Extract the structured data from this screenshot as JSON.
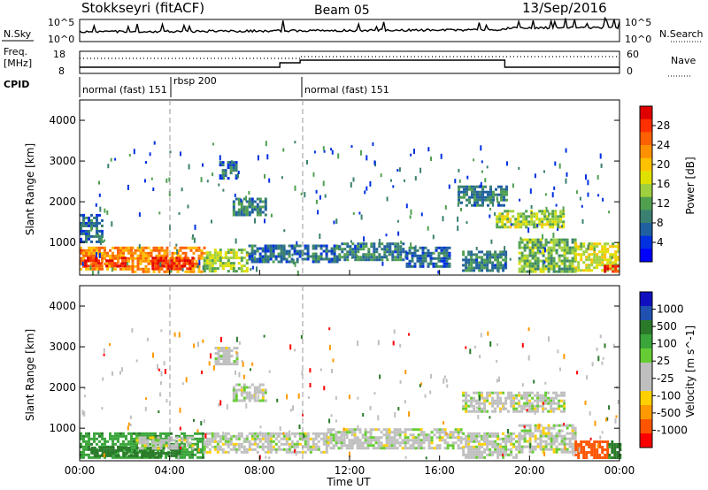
{
  "header": {
    "station": "Stokkseyri (fitACF)",
    "beam": "Beam 05",
    "date": "13/Sep/2016"
  },
  "top_panel": {
    "nsky_label": "N.Sky",
    "nsky_tick_top": "10^5",
    "nsky_tick_bottom": "10^0",
    "nsearch_label": "N.Search",
    "nsearch_tick_top": "10^5",
    "nsearch_tick_bottom": "10^0",
    "freq_label_line1": "Freq.",
    "freq_label_line2": "[MHz]",
    "freq_tick_top": "18",
    "freq_tick_bottom": "8",
    "nave_label": "Nave",
    "nave_tick_top": "60",
    "nave_tick_bottom": "0",
    "cpid_label": "CPID",
    "cpid_segments": [
      {
        "label": "normal (fast) 151",
        "start_h": 0,
        "end_h": 3.4
      },
      {
        "label": "rbsp 200",
        "start_h": 3.4,
        "end_h": 9.9
      },
      {
        "label": "normal (fast) 151",
        "start_h": 9.9,
        "end_h": 24
      }
    ]
  },
  "colorbars": {
    "power": {
      "label": "Power [dB]",
      "ticks": [
        "28",
        "24",
        "20",
        "16",
        "12",
        "8",
        "4"
      ],
      "colors": [
        "#e00000",
        "#ff3000",
        "#ff6000",
        "#ff9000",
        "#ffc000",
        "#e0e000",
        "#a0d040",
        "#50a050",
        "#3a8070",
        "#2060a0",
        "#0030e0",
        "#0000ff"
      ]
    },
    "velocity": {
      "label": "Velocity [m s^-1]",
      "ticks": [
        "1000",
        "500",
        "100",
        "25",
        "-25",
        "-100",
        "-500",
        "-1000"
      ],
      "colors": [
        "#1010c0",
        "#2050b0",
        "#2a7a2a",
        "#3aa53a",
        "#66cc33",
        "#bfbfbf",
        "#bfbfbf",
        "#ffd000",
        "#ff9900",
        "#ff5500",
        "#ff0000"
      ]
    }
  },
  "chart_data": [
    {
      "type": "heatmap",
      "title": "Power",
      "xlabel": "",
      "ylabel": "Slant Range [km]",
      "x_range_hours": [
        0,
        24
      ],
      "ylim": [
        200,
        4500
      ],
      "yticks": [
        "1000",
        "2000",
        "3000",
        "4000"
      ],
      "zunit": "dB",
      "regions": [
        {
          "h0": 0.0,
          "h1": 2.3,
          "r0": 350,
          "r1": 900,
          "value": 22
        },
        {
          "h0": 0.2,
          "h1": 2.0,
          "r0": 400,
          "r1": 650,
          "value": 28
        },
        {
          "h0": 2.3,
          "h1": 5.5,
          "r0": 300,
          "r1": 900,
          "value": 22
        },
        {
          "h0": 3.2,
          "h1": 5.0,
          "r0": 350,
          "r1": 650,
          "value": 28
        },
        {
          "h0": 5.5,
          "h1": 7.5,
          "r0": 300,
          "r1": 850,
          "value": 14
        },
        {
          "h0": 7.5,
          "h1": 11.5,
          "r0": 500,
          "r1": 950,
          "value": 6
        },
        {
          "h0": 11.5,
          "h1": 14.5,
          "r0": 600,
          "r1": 1000,
          "value": 8
        },
        {
          "h0": 14.5,
          "h1": 16.5,
          "r0": 400,
          "r1": 900,
          "value": 6
        },
        {
          "h0": 17.0,
          "h1": 19.0,
          "r0": 300,
          "r1": 800,
          "value": 8
        },
        {
          "h0": 19.5,
          "h1": 22.0,
          "r0": 300,
          "r1": 1100,
          "value": 12
        },
        {
          "h0": 22.0,
          "h1": 24.0,
          "r0": 300,
          "r1": 1000,
          "value": 16
        },
        {
          "h0": 23.3,
          "h1": 24.0,
          "r0": 300,
          "r1": 450,
          "value": 28
        },
        {
          "h0": 18.5,
          "h1": 21.5,
          "r0": 1400,
          "r1": 1800,
          "value": 14
        },
        {
          "h0": 16.8,
          "h1": 19.0,
          "r0": 1900,
          "r1": 2400,
          "value": 8
        },
        {
          "h0": 6.8,
          "h1": 8.3,
          "r0": 1700,
          "r1": 2100,
          "value": 8
        },
        {
          "h0": 6.2,
          "h1": 7.0,
          "r0": 2600,
          "r1": 3000,
          "value": 6
        },
        {
          "h0": 0.0,
          "h1": 1.0,
          "r0": 1000,
          "r1": 1700,
          "value": 6
        }
      ],
      "speckle": [
        {
          "h0": 0,
          "h1": 24,
          "r0": 300,
          "r1": 3500,
          "count": 260,
          "values": [
            4,
            8,
            12
          ]
        }
      ]
    },
    {
      "type": "heatmap",
      "title": "Velocity",
      "xlabel": "Time UT",
      "ylabel": "Slant Range [km]",
      "x_range_hours": [
        0,
        24
      ],
      "xticks": [
        "00:00",
        "04:00",
        "08:00",
        "12:00",
        "16:00",
        "20:00",
        "00:00"
      ],
      "ylim": [
        200,
        4500
      ],
      "yticks": [
        "1000",
        "2000",
        "3000",
        "4000"
      ],
      "zunit": "m s^-1",
      "regions": [
        {
          "h0": 0.0,
          "h1": 5.5,
          "r0": 300,
          "r1": 900,
          "value": 75
        },
        {
          "h0": 0.5,
          "h1": 4.5,
          "r0": 300,
          "r1": 550,
          "value": 150
        },
        {
          "h0": 2.5,
          "h1": 5.0,
          "r0": 500,
          "r1": 800,
          "value": 0
        },
        {
          "h0": 5.5,
          "h1": 11.0,
          "r0": 400,
          "r1": 900,
          "value": 0
        },
        {
          "h0": 11.0,
          "h1": 17.0,
          "r0": 500,
          "r1": 1000,
          "value": 0
        },
        {
          "h0": 17.0,
          "h1": 19.5,
          "r0": 300,
          "r1": 900,
          "value": 0
        },
        {
          "h0": 19.5,
          "h1": 22.0,
          "r0": 400,
          "r1": 1100,
          "value": 0
        },
        {
          "h0": 22.0,
          "h1": 23.5,
          "r0": 300,
          "r1": 700,
          "value": -400
        },
        {
          "h0": 23.5,
          "h1": 24.0,
          "r0": 300,
          "r1": 700,
          "value": 120
        },
        {
          "h0": 17.0,
          "h1": 21.5,
          "r0": 1400,
          "r1": 1900,
          "value": 0
        },
        {
          "h0": 6.8,
          "h1": 8.3,
          "r0": 1700,
          "r1": 2100,
          "value": 0
        },
        {
          "h0": 6.0,
          "h1": 7.0,
          "r0": 2600,
          "r1": 3000,
          "value": 0
        }
      ],
      "speckle": [
        {
          "h0": 0,
          "h1": 24,
          "r0": 300,
          "r1": 3500,
          "count": 220,
          "values": [
            0,
            0,
            0,
            -150,
            -700,
            150
          ]
        }
      ]
    }
  ]
}
